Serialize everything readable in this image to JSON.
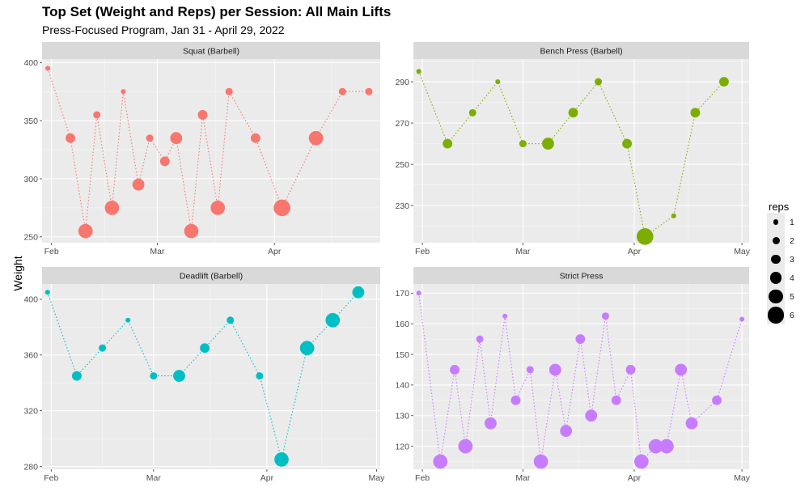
{
  "title": "Top Set (Weight and Reps) per Session: All Main Lifts",
  "subtitle": "Press-Focused Program, Jan 31 - April 29, 2022",
  "ylabel": "Weight",
  "legend": {
    "title": "reps",
    "items": [
      {
        "label": "1",
        "reps": 1
      },
      {
        "label": "2",
        "reps": 2
      },
      {
        "label": "3",
        "reps": 3
      },
      {
        "label": "4",
        "reps": 4
      },
      {
        "label": "5",
        "reps": 5
      },
      {
        "label": "6",
        "reps": 6
      }
    ]
  },
  "chart_data": [
    {
      "type": "scatter",
      "title": "Squat (Barbell)",
      "color": "#F8766D",
      "x_ticks": [
        {
          "label": "Feb",
          "day": 1
        },
        {
          "label": "Mar",
          "day": 29
        },
        {
          "label": "Apr",
          "day": 60
        }
      ],
      "xlim": [
        -1.5,
        88
      ],
      "y_ticks": [
        250,
        300,
        350,
        400
      ],
      "ylim": [
        245,
        403
      ],
      "points": [
        {
          "day": 0,
          "weight": 395,
          "reps": 1
        },
        {
          "day": 6,
          "weight": 335,
          "reps": 3
        },
        {
          "day": 10,
          "weight": 255,
          "reps": 5
        },
        {
          "day": 13,
          "weight": 355,
          "reps": 2
        },
        {
          "day": 17,
          "weight": 275,
          "reps": 5
        },
        {
          "day": 20,
          "weight": 375,
          "reps": 1
        },
        {
          "day": 24,
          "weight": 295,
          "reps": 4
        },
        {
          "day": 27,
          "weight": 335,
          "reps": 2
        },
        {
          "day": 31,
          "weight": 315,
          "reps": 3
        },
        {
          "day": 34,
          "weight": 335,
          "reps": 4
        },
        {
          "day": 38,
          "weight": 255,
          "reps": 5
        },
        {
          "day": 41,
          "weight": 355,
          "reps": 3
        },
        {
          "day": 45,
          "weight": 275,
          "reps": 5
        },
        {
          "day": 48,
          "weight": 375,
          "reps": 2
        },
        {
          "day": 55,
          "weight": 335,
          "reps": 3
        },
        {
          "day": 62,
          "weight": 275,
          "reps": 6
        },
        {
          "day": 71,
          "weight": 335,
          "reps": 5
        },
        {
          "day": 78,
          "weight": 375,
          "reps": 2
        },
        {
          "day": 85,
          "weight": 375,
          "reps": 2
        }
      ]
    },
    {
      "type": "scatter",
      "title": "Bench Press (Barbell)",
      "color": "#7CAE00",
      "x_ticks": [
        {
          "label": "Feb",
          "day": 1
        },
        {
          "label": "Mar",
          "day": 29
        },
        {
          "label": "Apr",
          "day": 60
        },
        {
          "label": "May",
          "day": 90
        }
      ],
      "xlim": [
        -1.5,
        92
      ],
      "y_ticks": [
        230,
        250,
        270,
        290
      ],
      "ylim": [
        212,
        301
      ],
      "points": [
        {
          "day": 0,
          "weight": 295,
          "reps": 1
        },
        {
          "day": 8,
          "weight": 260,
          "reps": 3
        },
        {
          "day": 15,
          "weight": 275,
          "reps": 2
        },
        {
          "day": 22,
          "weight": 290,
          "reps": 1
        },
        {
          "day": 29,
          "weight": 260,
          "reps": 2
        },
        {
          "day": 36,
          "weight": 260,
          "reps": 4
        },
        {
          "day": 43,
          "weight": 275,
          "reps": 3
        },
        {
          "day": 50,
          "weight": 290,
          "reps": 2
        },
        {
          "day": 58,
          "weight": 260,
          "reps": 3
        },
        {
          "day": 63,
          "weight": 215,
          "reps": 6
        },
        {
          "day": 71,
          "weight": 225,
          "reps": 1
        },
        {
          "day": 77,
          "weight": 275,
          "reps": 3
        },
        {
          "day": 85,
          "weight": 290,
          "reps": 3
        }
      ]
    },
    {
      "type": "scatter",
      "title": "Deadlift (Barbell)",
      "color": "#00BFC4",
      "x_ticks": [
        {
          "label": "Feb",
          "day": 1
        },
        {
          "label": "Mar",
          "day": 29
        },
        {
          "label": "Apr",
          "day": 60
        },
        {
          "label": "May",
          "day": 90
        }
      ],
      "xlim": [
        -1.5,
        91
      ],
      "y_ticks": [
        280,
        320,
        360,
        400
      ],
      "ylim": [
        278,
        411
      ],
      "points": [
        {
          "day": 0,
          "weight": 405,
          "reps": 1
        },
        {
          "day": 8,
          "weight": 345,
          "reps": 3
        },
        {
          "day": 15,
          "weight": 365,
          "reps": 2
        },
        {
          "day": 22,
          "weight": 385,
          "reps": 1
        },
        {
          "day": 29,
          "weight": 345,
          "reps": 2
        },
        {
          "day": 36,
          "weight": 345,
          "reps": 4
        },
        {
          "day": 43,
          "weight": 365,
          "reps": 3
        },
        {
          "day": 50,
          "weight": 385,
          "reps": 2
        },
        {
          "day": 58,
          "weight": 345,
          "reps": 2
        },
        {
          "day": 64,
          "weight": 285,
          "reps": 5
        },
        {
          "day": 71,
          "weight": 365,
          "reps": 5
        },
        {
          "day": 78,
          "weight": 385,
          "reps": 5
        },
        {
          "day": 85,
          "weight": 405,
          "reps": 4
        }
      ]
    },
    {
      "type": "scatter",
      "title": "Strict Press",
      "color": "#C77CFF",
      "x_ticks": [
        {
          "label": "Feb",
          "day": 1
        },
        {
          "label": "Mar",
          "day": 29
        },
        {
          "label": "Apr",
          "day": 60
        },
        {
          "label": "May",
          "day": 90
        }
      ],
      "xlim": [
        -1.5,
        92
      ],
      "y_ticks": [
        120,
        130,
        140,
        150,
        160,
        170
      ],
      "ylim": [
        112.5,
        173
      ],
      "points": [
        {
          "day": 0,
          "weight": 170,
          "reps": 1
        },
        {
          "day": 6,
          "weight": 115,
          "reps": 5
        },
        {
          "day": 10,
          "weight": 145,
          "reps": 3
        },
        {
          "day": 13,
          "weight": 120,
          "reps": 5
        },
        {
          "day": 17,
          "weight": 155,
          "reps": 2
        },
        {
          "day": 20,
          "weight": 127.5,
          "reps": 4
        },
        {
          "day": 24,
          "weight": 162.5,
          "reps": 1
        },
        {
          "day": 27,
          "weight": 135,
          "reps": 3
        },
        {
          "day": 31,
          "weight": 145,
          "reps": 2
        },
        {
          "day": 34,
          "weight": 115,
          "reps": 5
        },
        {
          "day": 38,
          "weight": 145,
          "reps": 4
        },
        {
          "day": 41,
          "weight": 125,
          "reps": 4
        },
        {
          "day": 45,
          "weight": 155,
          "reps": 3
        },
        {
          "day": 48,
          "weight": 130,
          "reps": 4
        },
        {
          "day": 52,
          "weight": 162.5,
          "reps": 2
        },
        {
          "day": 55,
          "weight": 135,
          "reps": 3
        },
        {
          "day": 59,
          "weight": 145,
          "reps": 3
        },
        {
          "day": 62,
          "weight": 115,
          "reps": 5
        },
        {
          "day": 66,
          "weight": 120,
          "reps": 5
        },
        {
          "day": 69,
          "weight": 120,
          "reps": 5
        },
        {
          "day": 73,
          "weight": 145,
          "reps": 4
        },
        {
          "day": 76,
          "weight": 127.5,
          "reps": 4
        },
        {
          "day": 83,
          "weight": 135,
          "reps": 3
        },
        {
          "day": 90,
          "weight": 161.5,
          "reps": 1
        }
      ]
    }
  ]
}
